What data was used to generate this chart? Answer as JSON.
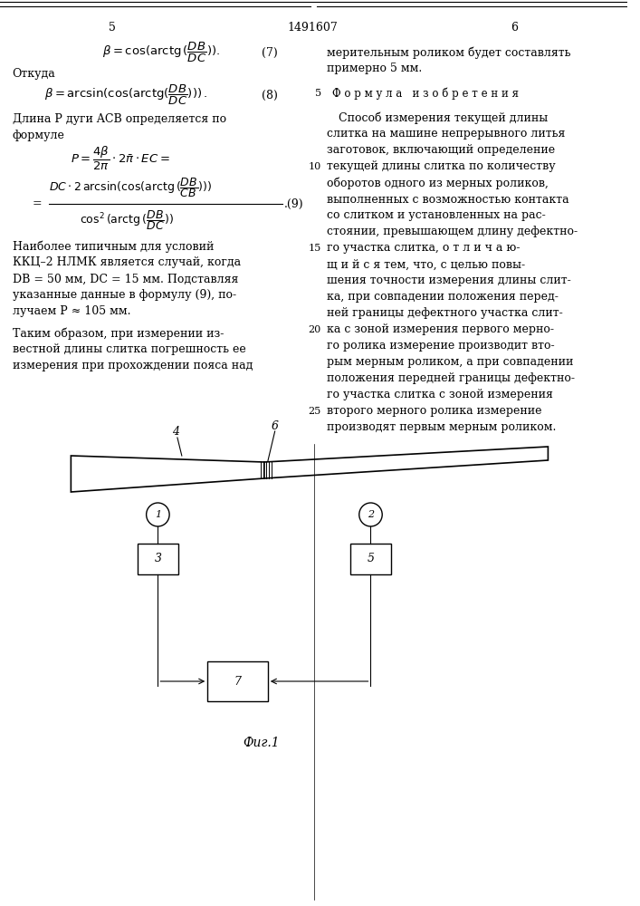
{
  "bg_color": "#ffffff",
  "text_color": "#000000",
  "page_num_left": "5",
  "page_num_center": "1491607",
  "page_num_right": "6",
  "fig_caption": "Фиг.1"
}
